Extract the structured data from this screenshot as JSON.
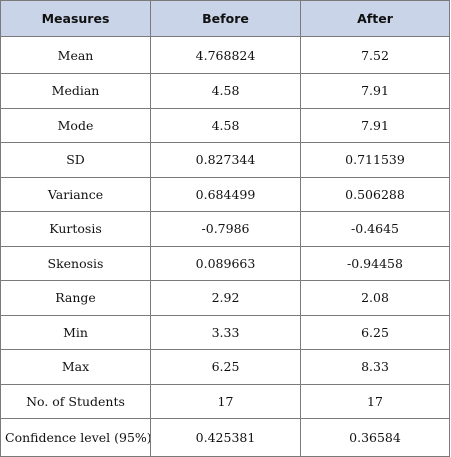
{
  "table": {
    "headers": [
      "Measures",
      "Before",
      "After"
    ],
    "rows": [
      [
        "Mean",
        "4.768824",
        "7.52"
      ],
      [
        "Median",
        "4.58",
        "7.91"
      ],
      [
        "Mode",
        "4.58",
        "7.91"
      ],
      [
        "SD",
        "0.827344",
        "0.711539"
      ],
      [
        "Variance",
        "0.684499",
        "0.506288"
      ],
      [
        "Kurtosis",
        "-0.7986",
        "-0.4645"
      ],
      [
        "Skenosis",
        "0.089663",
        "-0.94458"
      ],
      [
        "Range",
        "2.92",
        "2.08"
      ],
      [
        "Min",
        "3.33",
        "6.25"
      ],
      [
        "Max",
        "6.25",
        "8.33"
      ],
      [
        "No. of Students",
        "17",
        "17"
      ],
      [
        "Confidence level (95%)",
        "0.425381",
        "0.36584"
      ]
    ]
  },
  "colors": {
    "header_bg": "#c9d4e8",
    "border": "#7a7a7a",
    "text": "#111111"
  }
}
